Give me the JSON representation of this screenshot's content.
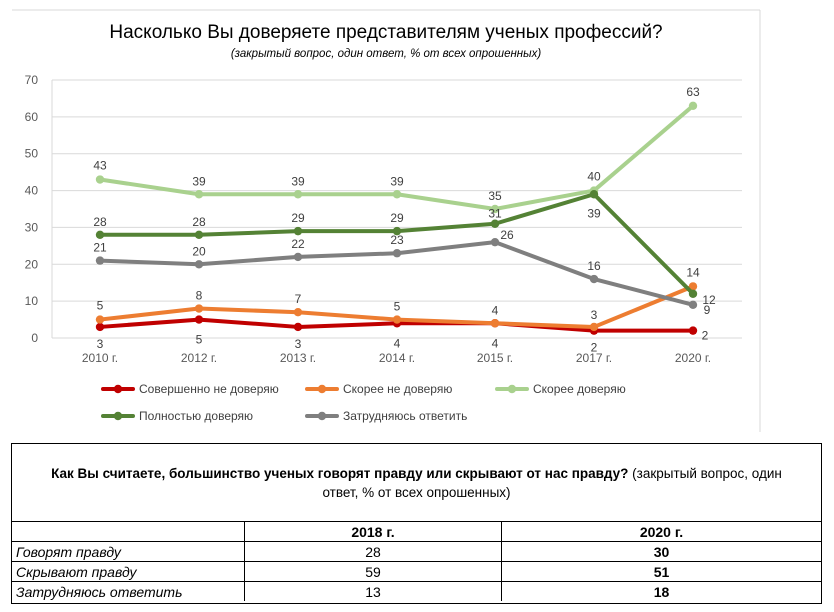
{
  "chart_data": {
    "type": "line",
    "title": "Насколько Вы доверяете представителям ученых профессий?",
    "subtitle": "(закрытый вопрос, один ответ, % от всех опрошенных)",
    "categories": [
      "2010 г.",
      "2012 г.",
      "2013 г.",
      "2014 г.",
      "2015 г.",
      "2017 г.",
      "2020 г."
    ],
    "ylim": [
      0,
      70
    ],
    "yticks": [
      "0",
      "10",
      "20",
      "30",
      "40",
      "50",
      "60",
      "70"
    ],
    "grid": true,
    "series": [
      {
        "name": "Совершенно не доверяю",
        "color": "#c00000",
        "values": [
          3,
          5,
          3,
          4,
          4,
          2,
          2
        ],
        "labels": [
          "3",
          "5",
          "3",
          "4",
          "4",
          "2",
          "2"
        ]
      },
      {
        "name": "Скорее не доверяю",
        "color": "#ed7d31",
        "values": [
          5,
          8,
          7,
          5,
          4,
          3,
          14
        ],
        "labels": [
          "5",
          "8",
          "7",
          "5",
          "4",
          "3",
          "14"
        ]
      },
      {
        "name": "Скорее доверяю",
        "color": "#a9d18e",
        "values": [
          43,
          39,
          39,
          39,
          35,
          40,
          63
        ],
        "labels": [
          "43",
          "39",
          "39",
          "39",
          "35",
          "40",
          "63"
        ]
      },
      {
        "name": "Полностью доверяю",
        "color": "#548235",
        "values": [
          28,
          28,
          29,
          29,
          31,
          39,
          12
        ],
        "labels": [
          "28",
          "28",
          "29",
          "29",
          "31",
          "39",
          "12"
        ]
      },
      {
        "name": "Затрудняюсь ответить",
        "color": "#7f7f7f",
        "values": [
          21,
          20,
          22,
          23,
          26,
          16,
          9
        ],
        "labels": [
          "21",
          "20",
          "22",
          "23",
          "26",
          "16",
          "9"
        ]
      }
    ]
  },
  "table": {
    "question_bold": "Как Вы считаете, большинство ученых говорят правду или скрывают от нас правду?",
    "question_rest": " (закрытый вопрос, один ответ, % от всех опрошенных)",
    "headers": [
      "2018 г.",
      "2020 г."
    ],
    "rows": [
      {
        "label": "Говорят правду",
        "y2018": "28",
        "y2020": "30"
      },
      {
        "label": "Скрывают правду",
        "y2018": "59",
        "y2020": "51"
      },
      {
        "label": "Затрудняюсь ответить",
        "y2018": "13",
        "y2020": "18"
      }
    ]
  }
}
